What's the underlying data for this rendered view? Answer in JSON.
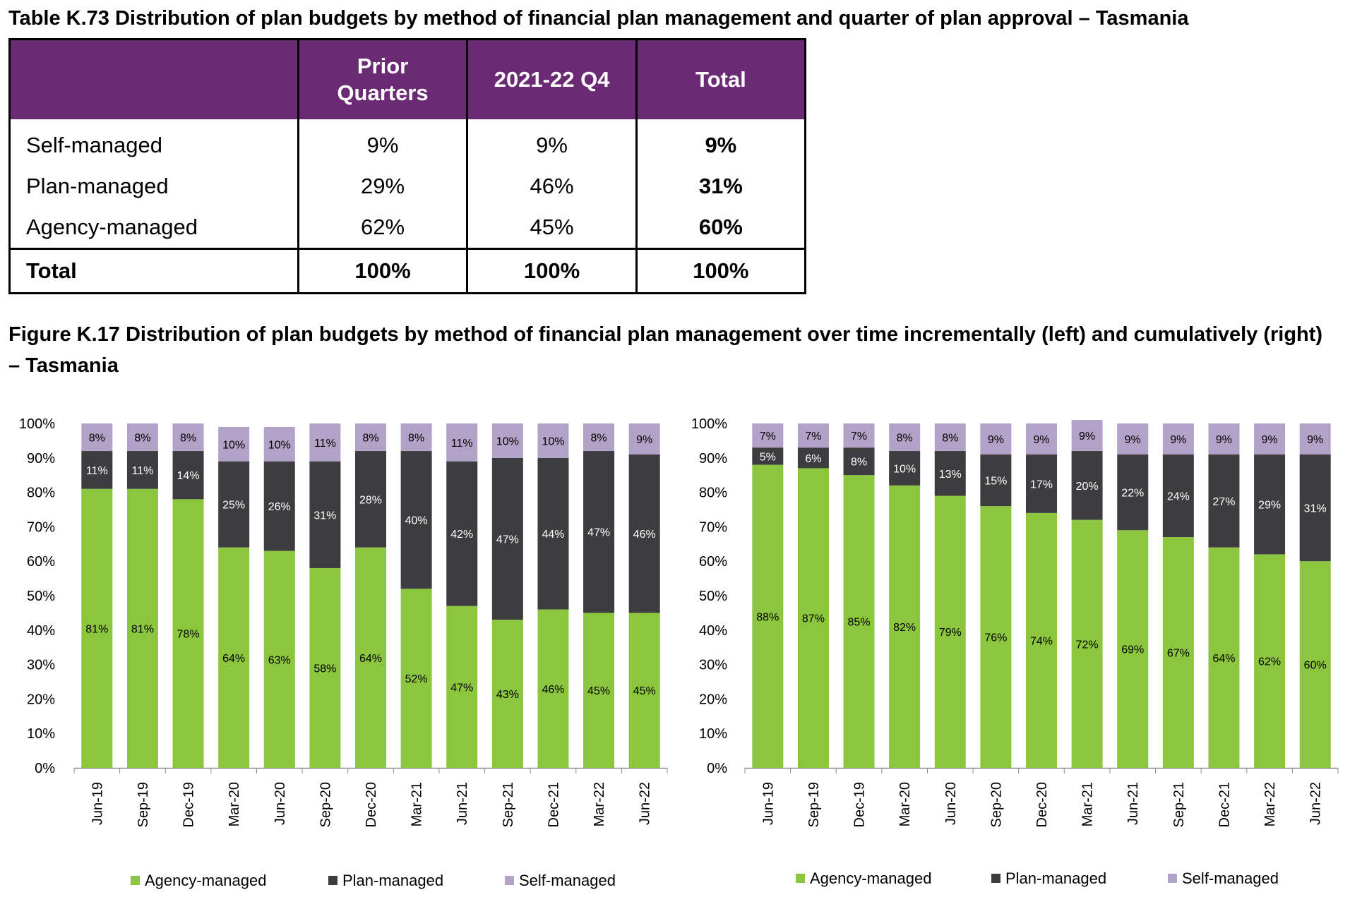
{
  "table": {
    "title": "Table K.73 Distribution of plan budgets by method of financial plan management and quarter of plan approval – Tasmania",
    "headers": [
      "",
      "Prior Quarters",
      "2021-22 Q4",
      "Total"
    ],
    "rows": [
      {
        "label": "Self-managed",
        "prior": "9%",
        "q4": "9%",
        "total": "9%"
      },
      {
        "label": "Plan-managed",
        "prior": "29%",
        "q4": "46%",
        "total": "31%"
      },
      {
        "label": "Agency-managed",
        "prior": "62%",
        "q4": "45%",
        "total": "60%"
      }
    ],
    "total_row": {
      "label": "Total",
      "prior": "100%",
      "q4": "100%",
      "total": "100%"
    }
  },
  "figure": {
    "title": "Figure K.17 Distribution of plan budgets by method of financial plan management over time incrementally (left) and cumulatively (right) – Tasmania"
  },
  "colors": {
    "agency": "#8cc63f",
    "plan": "#3d3d3f",
    "self": "#b3a2c7",
    "header_bg": "#6b2a74"
  },
  "chart_data": [
    {
      "type": "bar",
      "stacked": true,
      "title": "",
      "xlabel": "",
      "ylabel": "",
      "ylim": [
        0,
        100
      ],
      "y_ticks": [
        "0%",
        "10%",
        "20%",
        "30%",
        "40%",
        "50%",
        "60%",
        "70%",
        "80%",
        "90%",
        "100%"
      ],
      "legend_position": "bottom",
      "categories": [
        "Jun-19",
        "Sep-19",
        "Dec-19",
        "Mar-20",
        "Jun-20",
        "Sep-20",
        "Dec-20",
        "Mar-21",
        "Jun-21",
        "Sep-21",
        "Dec-21",
        "Mar-22",
        "Jun-22"
      ],
      "series": [
        {
          "name": "Agency-managed",
          "color_key": "agency",
          "values": [
            81,
            81,
            78,
            64,
            63,
            58,
            64,
            52,
            47,
            43,
            46,
            45,
            45
          ]
        },
        {
          "name": "Plan-managed",
          "color_key": "plan",
          "values": [
            11,
            11,
            14,
            25,
            26,
            31,
            28,
            40,
            42,
            47,
            44,
            47,
            46
          ]
        },
        {
          "name": "Self-managed",
          "color_key": "self",
          "values": [
            8,
            8,
            8,
            10,
            10,
            11,
            8,
            8,
            11,
            10,
            10,
            8,
            9
          ]
        }
      ]
    },
    {
      "type": "bar",
      "stacked": true,
      "title": "",
      "xlabel": "",
      "ylabel": "",
      "ylim": [
        0,
        100
      ],
      "y_ticks": [
        "0%",
        "10%",
        "20%",
        "30%",
        "40%",
        "50%",
        "60%",
        "70%",
        "80%",
        "90%",
        "100%"
      ],
      "legend_position": "bottom",
      "categories": [
        "Jun-19",
        "Sep-19",
        "Dec-19",
        "Mar-20",
        "Jun-20",
        "Sep-20",
        "Dec-20",
        "Mar-21",
        "Jun-21",
        "Sep-21",
        "Dec-21",
        "Mar-22",
        "Jun-22"
      ],
      "series": [
        {
          "name": "Agency-managed",
          "color_key": "agency",
          "values": [
            88,
            87,
            85,
            82,
            79,
            76,
            74,
            72,
            69,
            67,
            64,
            62,
            60
          ]
        },
        {
          "name": "Plan-managed",
          "color_key": "plan",
          "values": [
            5,
            6,
            8,
            10,
            13,
            15,
            17,
            20,
            22,
            24,
            27,
            29,
            31
          ]
        },
        {
          "name": "Self-managed",
          "color_key": "self",
          "values": [
            7,
            7,
            7,
            8,
            8,
            9,
            9,
            9,
            9,
            9,
            9,
            9,
            9
          ]
        }
      ]
    }
  ]
}
